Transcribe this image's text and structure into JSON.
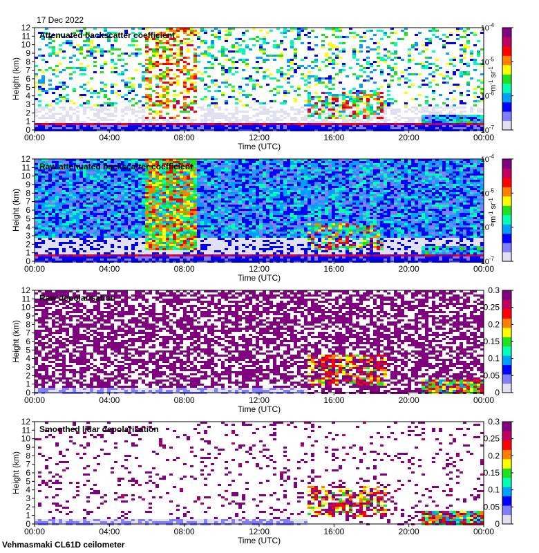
{
  "date": "17 Dec 2022",
  "site_label": "Vehmasmaki CL61D ceilometer",
  "chart_data": [
    {
      "type": "heatmap",
      "title": "Attenuated backscatter coefficient",
      "xlabel": "Time (UTC)",
      "ylabel": "Height (km)",
      "xticks": [
        "00:00",
        "04:00",
        "08:00",
        "12:00",
        "16:00",
        "20:00",
        "00:00"
      ],
      "xlim_hours": [
        0,
        24
      ],
      "ylim": [
        0,
        12
      ],
      "yticks": [
        0,
        1,
        2,
        3,
        4,
        5,
        6,
        7,
        8,
        9,
        10,
        11,
        12
      ],
      "colorbar": {
        "scale": "log",
        "range": [
          1e-07,
          0.0001
        ],
        "ticks": [
          "10-7",
          "10-6",
          "10-5",
          "10-4"
        ],
        "unit": "m-1 sr-1"
      },
      "colors": [
        "#e0e0f0",
        "#7f7fff",
        "#0000ff",
        "#00a0ff",
        "#00ffb0",
        "#20e020",
        "#ffff00",
        "#ff8000",
        "#ff0000",
        "#c00060",
        "#800080"
      ]
    },
    {
      "type": "heatmap",
      "title": "Raw attenuated backscatter coefficient",
      "xlabel": "Time (UTC)",
      "ylabel": "Height (km)",
      "xticks": [
        "00:00",
        "04:00",
        "08:00",
        "12:00",
        "16:00",
        "20:00",
        "00:00"
      ],
      "xlim_hours": [
        0,
        24
      ],
      "ylim": [
        0,
        12
      ],
      "yticks": [
        0,
        1,
        2,
        3,
        4,
        5,
        6,
        7,
        8,
        9,
        10,
        11,
        12
      ],
      "colorbar": {
        "scale": "log",
        "range": [
          1e-07,
          0.0001
        ],
        "ticks": [
          "10-7",
          "10-6",
          "10-5",
          "10-4"
        ],
        "unit": "m-1 sr-1"
      },
      "colors": [
        "#e0e0f0",
        "#7f7fff",
        "#0000ff",
        "#00a0ff",
        "#00ffb0",
        "#20e020",
        "#ffff00",
        "#ff8000",
        "#ff0000",
        "#c00060",
        "#800080"
      ]
    },
    {
      "type": "heatmap",
      "title": "Raw depolarisation",
      "xlabel": "Time (UTC)",
      "ylabel": "Height (km)",
      "xticks": [
        "00:00",
        "04:00",
        "08:00",
        "12:00",
        "16:00",
        "20:00",
        "00:00"
      ],
      "xlim_hours": [
        0,
        24
      ],
      "ylim": [
        0,
        12
      ],
      "yticks": [
        0,
        1,
        2,
        3,
        4,
        5,
        6,
        7,
        8,
        9,
        10,
        11,
        12
      ],
      "colorbar": {
        "scale": "linear",
        "range": [
          0,
          0.3
        ],
        "ticks": [
          "0",
          "0.05",
          "0.1",
          "0.15",
          "0.2",
          "0.25",
          "0.3"
        ],
        "unit": ""
      },
      "colors": [
        "#e0e0f0",
        "#7f7fff",
        "#0000ff",
        "#00a0ff",
        "#00ffb0",
        "#20e020",
        "#ffff00",
        "#ff8000",
        "#ff0000",
        "#c00060",
        "#800080"
      ]
    },
    {
      "type": "heatmap",
      "title": "Smoothed lidar depolarisation",
      "xlabel": "Time (UTC)",
      "ylabel": "Height (km)",
      "xticks": [
        "00:00",
        "04:00",
        "08:00",
        "12:00",
        "16:00",
        "20:00",
        "00:00"
      ],
      "xlim_hours": [
        0,
        24
      ],
      "ylim": [
        0,
        12
      ],
      "yticks": [
        0,
        1,
        2,
        3,
        4,
        5,
        6,
        7,
        8,
        9,
        10,
        11,
        12
      ],
      "colorbar": {
        "scale": "linear",
        "range": [
          0,
          0.3
        ],
        "ticks": [
          "0",
          "0.05",
          "0.1",
          "0.15",
          "0.2",
          "0.25",
          "0.3"
        ],
        "unit": ""
      },
      "colors": [
        "#e0e0f0",
        "#7f7fff",
        "#0000ff",
        "#00a0ff",
        "#00ffb0",
        "#20e020",
        "#ffff00",
        "#ff8000",
        "#ff0000",
        "#c00060",
        "#800080"
      ]
    }
  ]
}
